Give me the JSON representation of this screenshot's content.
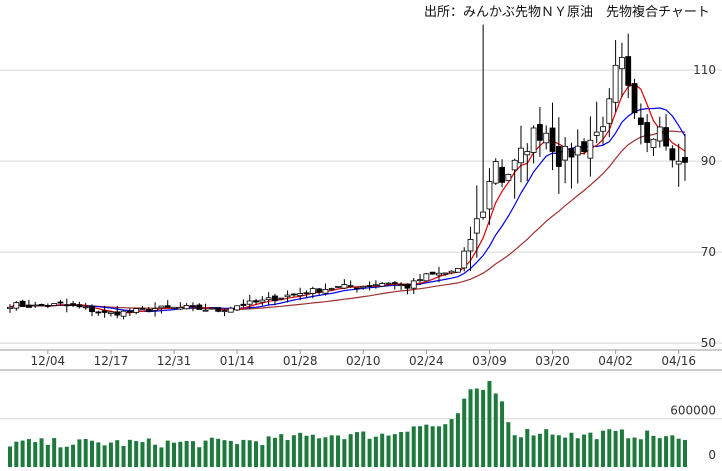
{
  "chart_data": {
    "type": "candlestick",
    "title": "出所：みんかぶ先物ＮＹ原油　先物複合チャート",
    "price_axis": {
      "ticks": [
        50,
        70,
        90,
        110
      ],
      "ylim": [
        48.5,
        121
      ]
    },
    "volume_axis": {
      "ticks": [
        0,
        600000
      ],
      "ylim": [
        0,
        1180000
      ]
    },
    "date_ticks": [
      {
        "index": 6,
        "label": "12/04"
      },
      {
        "index": 16,
        "label": "12/17"
      },
      {
        "index": 26,
        "label": "12/31"
      },
      {
        "index": 36,
        "label": "01/14"
      },
      {
        "index": 46,
        "label": "01/28"
      },
      {
        "index": 56,
        "label": "02/10"
      },
      {
        "index": 66,
        "label": "02/24"
      },
      {
        "index": 76,
        "label": "03/09"
      },
      {
        "index": 86,
        "label": "03/20"
      },
      {
        "index": 96,
        "label": "04/02"
      },
      {
        "index": 106,
        "label": "04/16"
      }
    ],
    "grid": true,
    "colors": {
      "candle_up": "#ffffff",
      "candle_down": "#000000",
      "ma_short": "#e00000",
      "ma_mid": "#0000ee",
      "ma_long": "#a03030",
      "volume": "#1e7a3c",
      "grid": "#d8d8d8"
    },
    "price_anchors": [
      [
        0,
        58.5
      ],
      [
        4,
        58.1
      ],
      [
        8,
        58.5
      ],
      [
        12,
        57.6
      ],
      [
        15,
        56.5
      ],
      [
        19,
        56.9
      ],
      [
        23,
        57.6
      ],
      [
        28,
        57.8
      ],
      [
        33,
        57.2
      ],
      [
        36,
        58.3
      ],
      [
        40,
        59.2
      ],
      [
        44,
        60.5
      ],
      [
        48,
        61.5
      ],
      [
        51,
        62.2
      ],
      [
        56,
        62.6
      ],
      [
        60,
        63.4
      ],
      [
        63,
        62.4
      ],
      [
        66,
        64.8
      ],
      [
        69,
        65.4
      ],
      [
        71,
        66.2
      ],
      [
        73,
        73.2
      ],
      [
        75,
        79.8
      ],
      [
        77,
        90.5
      ],
      [
        78,
        86.0
      ],
      [
        80,
        89.0
      ],
      [
        83,
        96.0
      ],
      [
        85,
        96.5
      ],
      [
        87,
        90.5
      ],
      [
        89,
        92.0
      ],
      [
        91,
        93.5
      ],
      [
        93,
        96.0
      ],
      [
        95,
        102.0
      ],
      [
        96,
        109.5
      ],
      [
        97,
        111.2
      ],
      [
        99,
        99.0
      ],
      [
        101,
        95.0
      ],
      [
        103,
        98.5
      ],
      [
        104,
        95.0
      ],
      [
        106,
        89.5
      ],
      [
        107,
        90.8
      ]
    ],
    "volume_pattern": [
      [
        0,
        0.3
      ],
      [
        30,
        0.3
      ],
      [
        40,
        0.33
      ],
      [
        50,
        0.4
      ],
      [
        60,
        0.4
      ],
      [
        64,
        0.52
      ],
      [
        68,
        0.5
      ],
      [
        71,
        0.62
      ],
      [
        73,
        0.97
      ],
      [
        75,
        0.9
      ],
      [
        76,
        1.05
      ],
      [
        78,
        0.8
      ],
      [
        80,
        0.42
      ],
      [
        85,
        0.45
      ],
      [
        90,
        0.38
      ],
      [
        95,
        0.42
      ],
      [
        100,
        0.4
      ],
      [
        104,
        0.38
      ],
      [
        107,
        0.3
      ]
    ]
  }
}
